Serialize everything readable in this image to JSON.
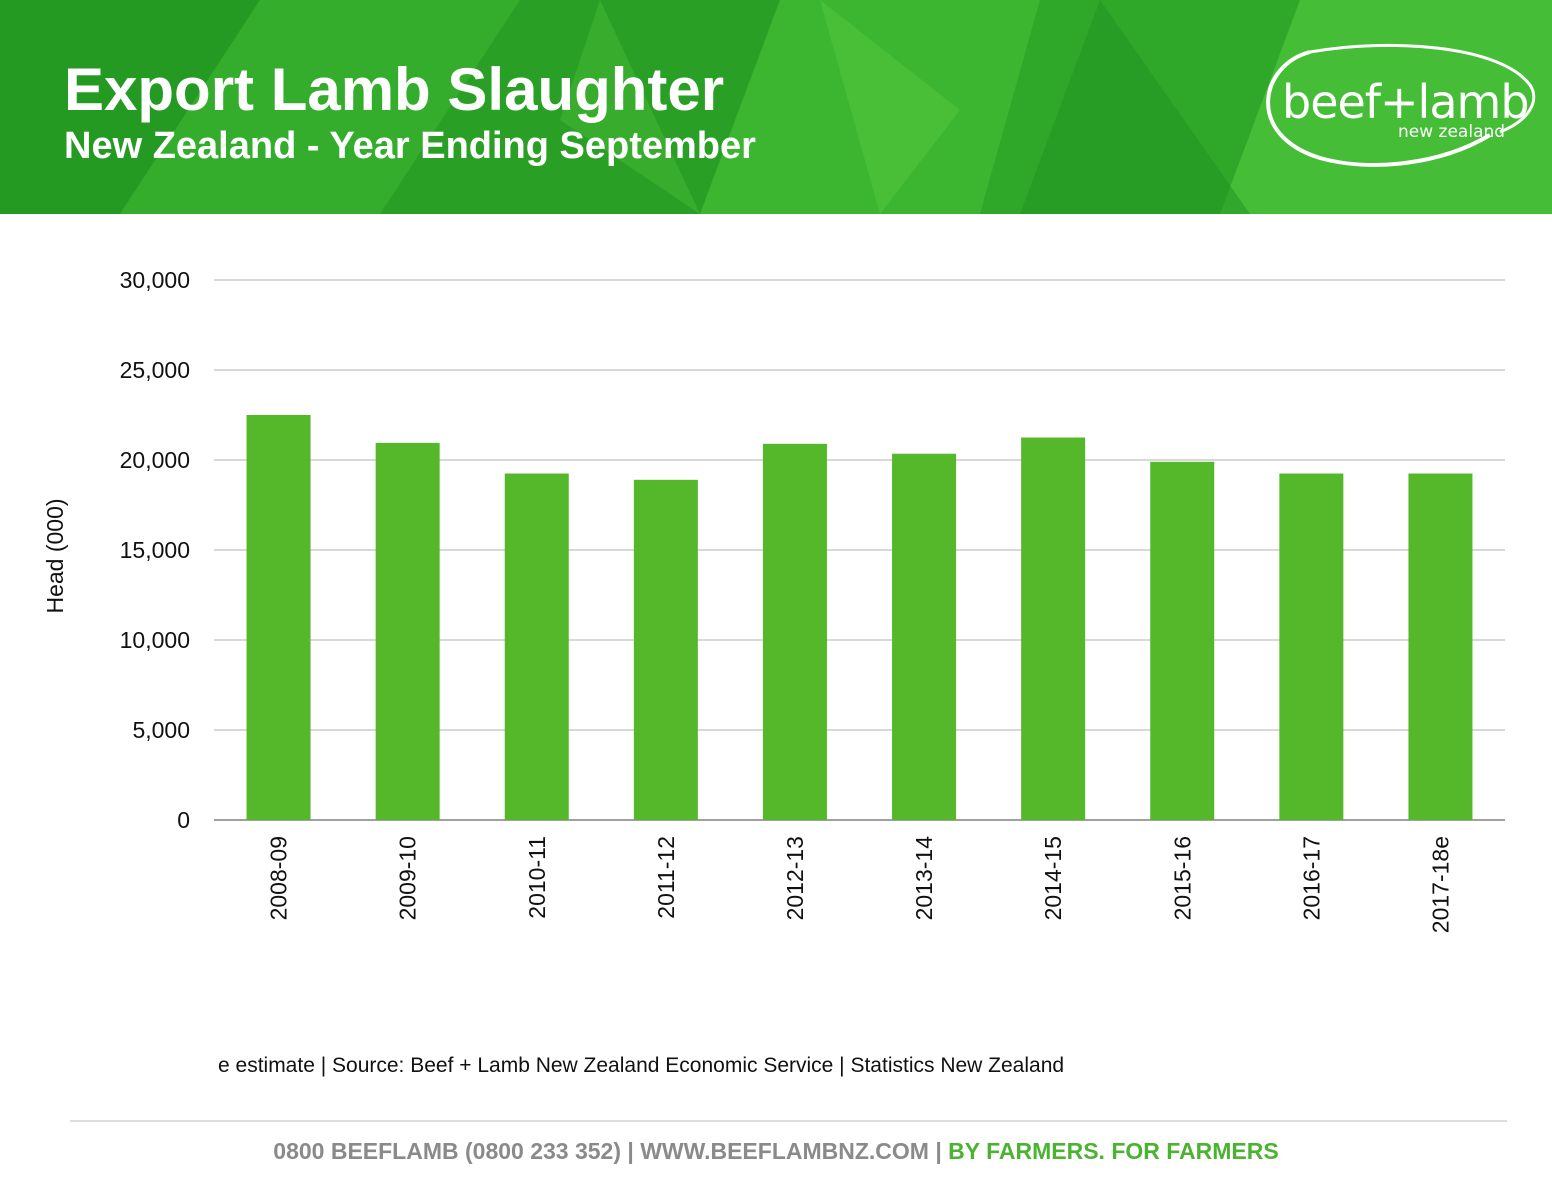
{
  "header": {
    "title": "Export Lamb Slaughter",
    "subtitle": "New Zealand - Year Ending September",
    "logo_main": "beef+lamb",
    "logo_sub": "new zealand"
  },
  "chart_data": {
    "type": "bar",
    "title": "Export Lamb Slaughter",
    "subtitle": "New Zealand - Year Ending September",
    "xlabel": "",
    "ylabel": "Head (000)",
    "categories": [
      "2008-09",
      "2009-10",
      "2010-11",
      "2011-12",
      "2012-13",
      "2013-14",
      "2014-15",
      "2015-16",
      "2016-17",
      "2017-18e"
    ],
    "values": [
      22500,
      20950,
      19250,
      18900,
      20900,
      20350,
      21250,
      19900,
      19250,
      19250
    ],
    "ylim": [
      0,
      30000
    ],
    "yticks": [
      0,
      5000,
      10000,
      15000,
      20000,
      25000,
      30000
    ],
    "ytick_labels": [
      "0",
      "5,000",
      "10,000",
      "15,000",
      "20,000",
      "25,000",
      "30,000"
    ],
    "grid": true,
    "legend": "none",
    "bar_color": "#55b82a"
  },
  "source_note": "e estimate | Source: Beef + Lamb New Zealand Economic Service | Statistics New Zealand",
  "footer": {
    "contact": "0800 BEEFLAMB (0800 233 352) | WWW.BEEFLAMBNZ.COM | ",
    "tagline": "BY FARMERS. FOR FARMERS"
  },
  "colors": {
    "header_green": "#2ea52a",
    "bar_green": "#55b82a",
    "footer_gray": "#8a8a8a",
    "footer_green": "#4cb232"
  }
}
